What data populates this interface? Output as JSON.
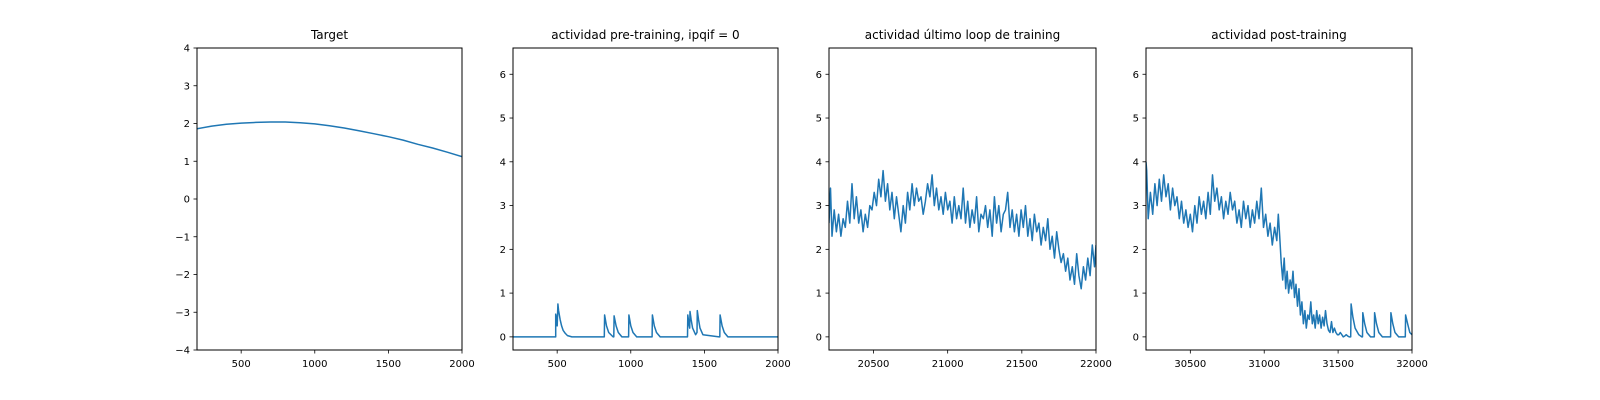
{
  "line_color": "#1f77b4",
  "chart_data": [
    {
      "type": "line",
      "title": "Target",
      "xlim": [
        200,
        2000
      ],
      "ylim": [
        -4,
        4
      ],
      "xticks": [
        500,
        1000,
        1500,
        2000
      ],
      "yticks": [
        -4,
        -3,
        -2,
        -1,
        0,
        1,
        2,
        3,
        4
      ],
      "grid": false,
      "series": [
        {
          "x": [
            200,
            300,
            400,
            500,
            600,
            700,
            750,
            800,
            900,
            1000,
            1100,
            1200,
            1300,
            1400,
            1500,
            1600,
            1700,
            1800,
            1900,
            2000
          ],
          "y": [
            1.86,
            1.93,
            1.98,
            2.01,
            2.03,
            2.04,
            2.04,
            2.04,
            2.02,
            1.99,
            1.94,
            1.88,
            1.81,
            1.73,
            1.65,
            1.56,
            1.45,
            1.35,
            1.24,
            1.12
          ]
        }
      ]
    },
    {
      "type": "line",
      "title": "actividad pre-training, ipqif = 0",
      "xlim": [
        200,
        2000
      ],
      "ylim": [
        -0.3,
        6.6
      ],
      "xticks": [
        500,
        1000,
        1500,
        2000
      ],
      "yticks": [
        0,
        1,
        2,
        3,
        4,
        5,
        6
      ],
      "grid": false,
      "series": [
        {
          "x": [
            200,
            490,
            490,
            497,
            500,
            505,
            510,
            520,
            530,
            540,
            555,
            570,
            600,
            810,
            820,
            822,
            835,
            850,
            880,
            885,
            887,
            900,
            915,
            940,
            980,
            985,
            987,
            1000,
            1015,
            1040,
            1140,
            1145,
            1147,
            1160,
            1175,
            1200,
            1380,
            1385,
            1387,
            1395,
            1400,
            1402,
            1410,
            1420,
            1440,
            1450,
            1452,
            1460,
            1470,
            1490,
            1600,
            1605,
            1607,
            1620,
            1635,
            1660,
            2000
          ],
          "y": [
            0,
            0,
            0.52,
            0.4,
            0.25,
            0.75,
            0.6,
            0.4,
            0.25,
            0.15,
            0.08,
            0.03,
            0,
            0,
            0,
            0.5,
            0.25,
            0.1,
            0,
            0,
            0.48,
            0.25,
            0.1,
            0,
            0,
            0,
            0.5,
            0.25,
            0.1,
            0,
            0,
            0,
            0.5,
            0.25,
            0.1,
            0,
            0,
            0,
            0.5,
            0.3,
            0.2,
            0.58,
            0.4,
            0.2,
            0.05,
            0.1,
            0.6,
            0.4,
            0.2,
            0.05,
            0,
            0,
            0.5,
            0.25,
            0.1,
            0,
            0
          ]
        }
      ]
    },
    {
      "type": "line",
      "title": "actividad último loop de training",
      "xlim": [
        20200,
        22000
      ],
      "ylim": [
        -0.3,
        6.6
      ],
      "xticks": [
        20500,
        21000,
        21500,
        22000
      ],
      "yticks": [
        0,
        1,
        2,
        3,
        4,
        5,
        6
      ],
      "grid": false,
      "series": [
        {
          "x": [
            20200,
            20210,
            20220,
            20235,
            20250,
            20265,
            20280,
            20295,
            20310,
            20325,
            20340,
            20355,
            20370,
            20385,
            20400,
            20415,
            20430,
            20445,
            20460,
            20475,
            20490,
            20505,
            20520,
            20535,
            20550,
            20565,
            20580,
            20595,
            20610,
            20625,
            20640,
            20655,
            20670,
            20685,
            20700,
            20715,
            20730,
            20745,
            20760,
            20775,
            20790,
            20805,
            20820,
            20835,
            20850,
            20865,
            20880,
            20895,
            20910,
            20925,
            20940,
            20955,
            20970,
            20985,
            21000,
            21015,
            21030,
            21045,
            21060,
            21075,
            21090,
            21105,
            21120,
            21135,
            21150,
            21165,
            21180,
            21195,
            21210,
            21225,
            21240,
            21255,
            21270,
            21285,
            21300,
            21315,
            21330,
            21345,
            21360,
            21375,
            21390,
            21405,
            21420,
            21435,
            21450,
            21465,
            21480,
            21495,
            21510,
            21525,
            21540,
            21555,
            21570,
            21585,
            21600,
            21615,
            21630,
            21645,
            21660,
            21675,
            21690,
            21705,
            21720,
            21735,
            21750,
            21765,
            21780,
            21795,
            21810,
            21825,
            21840,
            21855,
            21870,
            21885,
            21900,
            21915,
            21930,
            21945,
            21960,
            21975,
            21990,
            22000
          ],
          "y": [
            2.6,
            3.4,
            2.3,
            2.9,
            2.4,
            2.8,
            2.3,
            2.7,
            2.5,
            3.1,
            2.6,
            3.5,
            2.7,
            3.2,
            2.6,
            2.9,
            2.4,
            2.8,
            2.5,
            3.0,
            2.9,
            3.3,
            3.0,
            3.6,
            3.2,
            3.8,
            3.1,
            3.5,
            2.9,
            3.3,
            2.7,
            3.2,
            2.8,
            2.4,
            3.0,
            2.6,
            3.3,
            2.9,
            3.5,
            3.0,
            3.4,
            3.1,
            3.2,
            2.8,
            3.1,
            3.5,
            3.2,
            3.7,
            3.0,
            3.4,
            2.9,
            3.2,
            2.8,
            3.3,
            2.9,
            3.1,
            2.6,
            3.2,
            2.7,
            3.0,
            2.7,
            3.4,
            2.6,
            3.1,
            2.5,
            2.9,
            2.6,
            3.2,
            2.4,
            2.8,
            2.7,
            3.0,
            2.5,
            2.9,
            2.3,
            3.2,
            2.6,
            3.0,
            2.4,
            2.8,
            2.9,
            3.3,
            2.5,
            2.9,
            2.4,
            2.8,
            2.3,
            2.9,
            2.5,
            3.0,
            2.3,
            2.7,
            2.2,
            2.8,
            2.4,
            2.6,
            2.1,
            2.5,
            2.2,
            2.7,
            2.0,
            2.3,
            1.8,
            2.4,
            2.0,
            1.7,
            1.9,
            1.5,
            1.8,
            1.3,
            1.6,
            1.2,
            1.9,
            1.4,
            1.1,
            1.6,
            1.3,
            1.8,
            1.4,
            2.1,
            1.6,
            2.1
          ]
        }
      ]
    },
    {
      "type": "line",
      "title": "actividad post-training",
      "xlim": [
        30200,
        32000
      ],
      "ylim": [
        -0.3,
        6.6
      ],
      "xticks": [
        30500,
        31000,
        31500,
        32000
      ],
      "yticks": [
        0,
        1,
        2,
        3,
        4,
        5,
        6
      ],
      "grid": false,
      "series": [
        {
          "x": [
            30200,
            30205,
            30215,
            30230,
            30245,
            30260,
            30275,
            30290,
            30305,
            30320,
            30335,
            30350,
            30365,
            30380,
            30395,
            30410,
            30425,
            30440,
            30455,
            30470,
            30485,
            30500,
            30515,
            30530,
            30545,
            30560,
            30575,
            30590,
            30605,
            30620,
            30635,
            30650,
            30665,
            30680,
            30695,
            30710,
            30725,
            30740,
            30755,
            30770,
            30785,
            30800,
            30815,
            30830,
            30845,
            30860,
            30875,
            30890,
            30905,
            30920,
            30935,
            30950,
            30965,
            30980,
            30995,
            31010,
            31025,
            31040,
            31055,
            31070,
            31085,
            31095,
            31105,
            31115,
            31125,
            31135,
            31145,
            31155,
            31165,
            31175,
            31185,
            31195,
            31205,
            31215,
            31225,
            31235,
            31245,
            31255,
            31265,
            31275,
            31285,
            31295,
            31305,
            31315,
            31325,
            31335,
            31345,
            31355,
            31365,
            31375,
            31385,
            31395,
            31405,
            31415,
            31425,
            31435,
            31445,
            31455,
            31465,
            31475,
            31485,
            31495,
            31505,
            31515,
            31525,
            31535,
            31545,
            31555,
            31565,
            31575,
            31585,
            31588,
            31600,
            31615,
            31640,
            31660,
            31665,
            31667,
            31680,
            31695,
            31720,
            31740,
            31745,
            31747,
            31760,
            31775,
            31800,
            31850,
            31855,
            31857,
            31870,
            31885,
            31910,
            31950,
            31955,
            31957,
            31970,
            31985,
            32000
          ],
          "y": [
            4.0,
            3.8,
            2.7,
            3.3,
            2.8,
            3.5,
            3.0,
            3.6,
            3.1,
            3.7,
            3.2,
            3.5,
            2.9,
            3.4,
            3.0,
            3.2,
            2.7,
            3.1,
            2.6,
            2.9,
            2.5,
            2.8,
            2.4,
            3.0,
            2.6,
            3.2,
            2.8,
            3.1,
            2.7,
            3.3,
            2.8,
            3.7,
            3.1,
            3.4,
            2.9,
            3.2,
            2.7,
            3.1,
            2.8,
            3.3,
            2.9,
            3.1,
            2.6,
            2.9,
            2.5,
            3.1,
            2.7,
            3.0,
            2.5,
            2.9,
            2.6,
            3.1,
            2.7,
            3.4,
            2.5,
            2.8,
            2.3,
            2.6,
            2.1,
            2.5,
            2.2,
            2.8,
            2.3,
            1.7,
            1.3,
            1.8,
            1.1,
            1.5,
            1.0,
            1.3,
            1.1,
            1.5,
            0.9,
            1.2,
            0.7,
            1.1,
            0.5,
            0.8,
            0.3,
            0.6,
            0.2,
            0.5,
            0.4,
            0.8,
            0.3,
            0.5,
            0.2,
            0.6,
            0.3,
            0.5,
            0.2,
            0.45,
            0.25,
            0.6,
            0.3,
            0.15,
            0.1,
            0.35,
            0.1,
            0.2,
            0.1,
            0.05,
            0.05,
            0.1,
            0.05,
            0.0,
            0.02,
            0.05,
            0.02,
            0.0,
            0.0,
            0.75,
            0.45,
            0.2,
            0.05,
            0.0,
            0.0,
            0.55,
            0.3,
            0.1,
            0.0,
            0.0,
            0.0,
            0.55,
            0.3,
            0.1,
            0.0,
            0.0,
            0.0,
            0.55,
            0.3,
            0.1,
            0.0,
            0.0,
            0.0,
            0.5,
            0.3,
            0.1,
            0.05
          ]
        }
      ]
    }
  ]
}
